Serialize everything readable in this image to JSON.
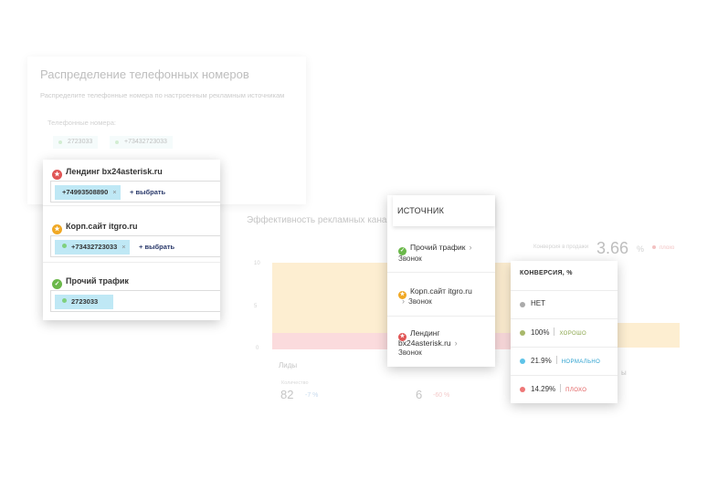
{
  "background": {
    "card_title": "Распределение телефонных номеров",
    "card_subtitle": "Распределите телефонные номера по настроенным рекламным источникам",
    "phones_label": "Телефонные номера:",
    "phone_chips": [
      "2723033",
      "+73432723033"
    ],
    "chart_title": "Эффективность рекламных кана",
    "axis_ticks": [
      "10",
      "5",
      "0"
    ],
    "conversion_label": "Конверсия в продажи",
    "conversion_value": "3.66",
    "conversion_unit": "%",
    "conversion_badge": "плохо",
    "leads_label": "Лиды",
    "stat1_caption": "Количество",
    "stat1_value": "82",
    "stat1_delta": "-7 %",
    "stat2_value": "6",
    "stat2_delta": "-60 %",
    "right_fragment": "ы",
    "colors": {
      "bar_yellow": "#fbd488",
      "bar_pink": "#f7a3a8"
    }
  },
  "sources_card": {
    "items": [
      {
        "name": "Лендинг bx24asterisk.ru",
        "badge_color": "#e05555",
        "badge_glyph": "★",
        "chips": [
          {
            "number": "+74993508890",
            "dot": false,
            "removable": true
          }
        ],
        "add_label": "+ выбрать"
      },
      {
        "name": "Корп.сайт itgro.ru",
        "badge_color": "#f0a824",
        "badge_glyph": "★",
        "chips": [
          {
            "number": "+73432723033",
            "dot": true,
            "removable": true
          }
        ],
        "add_label": "+ выбрать"
      },
      {
        "name": "Прочий трафик",
        "badge_color": "#6bb84a",
        "badge_glyph": "✓",
        "chips": [
          {
            "number": "2723033",
            "dot": true,
            "removable": false
          }
        ],
        "add_label": ""
      }
    ]
  },
  "source_popup": {
    "title": "ИСТОЧНИК",
    "items": [
      {
        "name": "Прочий трафик",
        "sub": "Звонок",
        "badge_color": "#6bb84a"
      },
      {
        "name": "Корп.сайт itgro.ru",
        "sub": "Звонок",
        "badge_color": "#f0a824"
      },
      {
        "name": "Лендинг bx24asterisk.ru",
        "name_line1": "Лендинг",
        "name_line2": "bx24asterisk.ru",
        "sub": "Звонок",
        "badge_color": "#e05555"
      }
    ]
  },
  "conversion_popup": {
    "title": "КОНВЕРСИЯ, %",
    "rows": [
      {
        "value": "НЕТ",
        "tag": "",
        "color": "#aaaaaa",
        "tag_color": "#999999"
      },
      {
        "value": "100%",
        "tag": "ХОРОШО",
        "color": "#a8b86a",
        "tag_color": "#8aa64a"
      },
      {
        "value": "21.9%",
        "tag": "НОРМАЛЬНО",
        "color": "#5ec3e8",
        "tag_color": "#2aa0cf"
      },
      {
        "value": "14.29%",
        "tag": "ПЛОХО",
        "color": "#ee7777",
        "tag_color": "#e05a5a"
      }
    ]
  }
}
